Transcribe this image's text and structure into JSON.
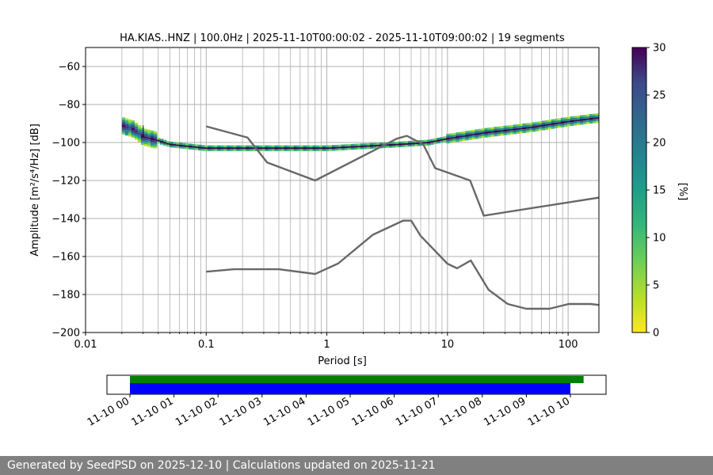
{
  "title": "HA.KIAS..HNZ | 100.0Hz | 2025-11-10T00:00:02 - 2025-11-10T09:00:02 | 19 segments",
  "footer": "Generated by SeedPSD on 2025-12-10 | Calculations updated on 2025-11-21",
  "colors": {
    "model": "#686868",
    "bar_green": "#008000",
    "bar_blue": "#0000ff",
    "grid": "#b0b0b0"
  },
  "chart_data": [
    {
      "type": "heatmap",
      "title": "HA.KIAS..HNZ | 100.0Hz | 2025-11-10T00:00:02 - 2025-11-10T09:00:02 | 19 segments",
      "xlabel": "Period [s]",
      "ylabel": "Amplitude [m²/s⁴/Hz] [dB]",
      "x_scale": "log",
      "xlim": [
        0.01,
        180
      ],
      "ylim": [
        -200,
        -50
      ],
      "x_ticks": [
        "0.01",
        "0.1",
        "1",
        "10",
        "100"
      ],
      "y_ticks": [
        "−200",
        "−180",
        "−160",
        "−140",
        "−120",
        "−100",
        "−80",
        "−60"
      ],
      "grid": true,
      "colorbar": {
        "label": "[%]",
        "range": [
          0,
          30
        ],
        "ticks": [
          "0",
          "5",
          "10",
          "15",
          "20",
          "25",
          "30"
        ],
        "colormap": "viridis_r"
      },
      "psd_mode": {
        "x": [
          0.02,
          0.025,
          0.03,
          0.04,
          0.05,
          0.07,
          0.1,
          0.2,
          0.5,
          1,
          2,
          4,
          7,
          10,
          20,
          50,
          100,
          180
        ],
        "y": [
          -91,
          -93,
          -97,
          -99,
          -101,
          -102,
          -103,
          -103,
          -103,
          -103,
          -102,
          -101,
          -100,
          -98,
          -95,
          -92,
          -89,
          -87
        ]
      },
      "model_curves": [
        {
          "x": [
            0.1,
            0.22,
            0.32,
            0.8,
            3.8,
            4.6,
            6.3,
            7.9,
            15.4,
            20,
            180
          ],
          "y": [
            -91.5,
            -97.4,
            -110.5,
            -120,
            -98,
            -96.5,
            -101,
            -113.5,
            -120,
            -138.5,
            -129
          ]
        },
        {
          "x": [
            0.1,
            0.17,
            0.4,
            0.8,
            1.24,
            2.4,
            4.3,
            5,
            6,
            10,
            12,
            15.6,
            21.9,
            31.6,
            45,
            70,
            101,
            154,
            180
          ],
          "y": [
            -168,
            -166.7,
            -166.7,
            -169.2,
            -163.7,
            -148.6,
            -141.1,
            -141.1,
            -149.2,
            -163.8,
            -166.2,
            -162.1,
            -177.5,
            -185,
            -187.5,
            -187.5,
            -185,
            -185,
            -185.5
          ]
        }
      ]
    },
    {
      "type": "bar",
      "x_ticks": [
        "11-10 00",
        "11-10 01",
        "11-10 02",
        "11-10 03",
        "11-10 04",
        "11-10 05",
        "11-10 06",
        "11-10 07",
        "11-10 08",
        "11-10 09",
        "11-10 10"
      ],
      "series": [
        {
          "color": "green",
          "start_hour": 0,
          "end_hour": 10.3
        },
        {
          "color": "blue",
          "start_hour": 0,
          "end_hour": 10.0
        }
      ]
    }
  ]
}
